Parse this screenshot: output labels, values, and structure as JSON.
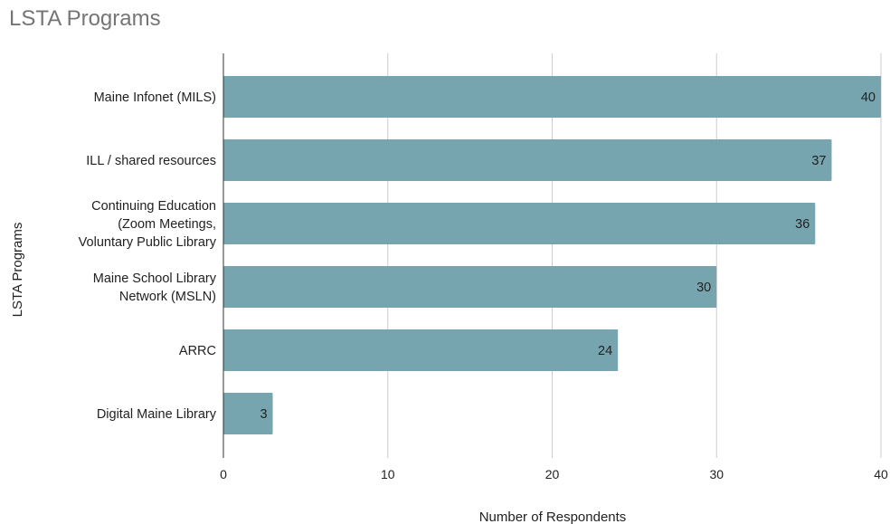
{
  "chart_data": {
    "type": "bar",
    "orientation": "horizontal",
    "title": "LSTA Programs",
    "xlabel": "Number of Respondents",
    "ylabel": "LSTA Programs",
    "categories": [
      [
        "Maine Infonet (MILS)"
      ],
      [
        "ILL / shared resources"
      ],
      [
        "Continuing Education",
        "(Zoom Meetings,",
        "Voluntary Public Library"
      ],
      [
        "Maine School Library",
        "Network (MSLN)"
      ],
      [
        "ARRC"
      ],
      [
        "Digital Maine Library"
      ]
    ],
    "values": [
      40,
      37,
      36,
      30,
      24,
      3
    ],
    "xlim": [
      0,
      40
    ],
    "xticks": [
      0,
      10,
      20,
      30,
      40
    ],
    "grid": true,
    "legend": "none",
    "bar_color": "#76a5af"
  }
}
